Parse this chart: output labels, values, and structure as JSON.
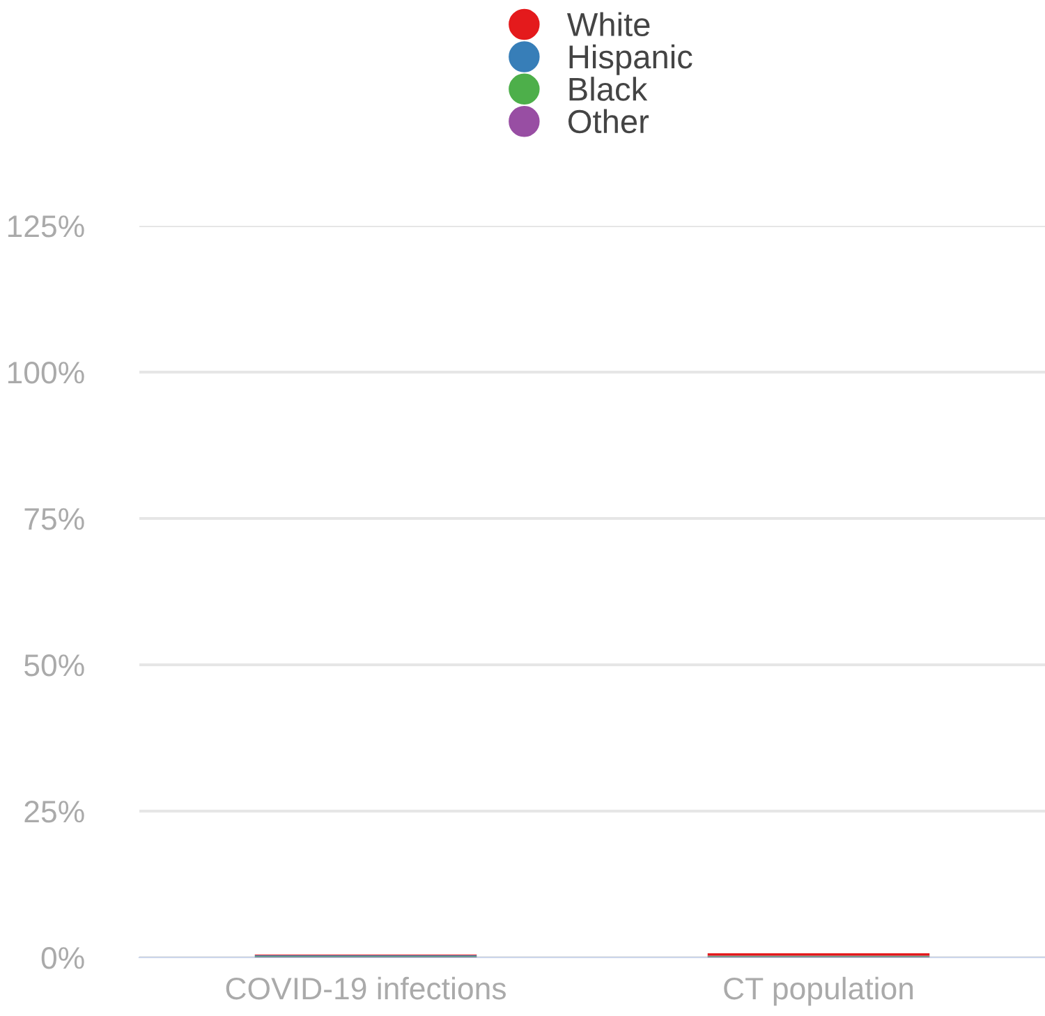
{
  "chart_data": {
    "type": "bar",
    "stacked": true,
    "categories": [
      "COVID-19 infections",
      "CT population"
    ],
    "series": [
      {
        "name": "Other",
        "color": "#984ea3",
        "values": [
          0.1,
          0.1
        ]
      },
      {
        "name": "Black",
        "color": "#4daf4a",
        "values": [
          0.1,
          0.1
        ]
      },
      {
        "name": "Hispanic",
        "color": "#377eb8",
        "values": [
          0.2,
          0.1
        ]
      },
      {
        "name": "White",
        "color": "#e41a1c",
        "values": [
          0.1,
          0.4
        ]
      }
    ],
    "ylim": [
      0,
      125
    ],
    "yticks": [
      {
        "value": 0,
        "label": "0%"
      },
      {
        "value": 25,
        "label": "25%"
      },
      {
        "value": 50,
        "label": "50%"
      },
      {
        "value": 75,
        "label": "75%"
      },
      {
        "value": 100,
        "label": "100%"
      },
      {
        "value": 125,
        "label": "125%"
      }
    ],
    "grid": "y",
    "legend": "top"
  }
}
